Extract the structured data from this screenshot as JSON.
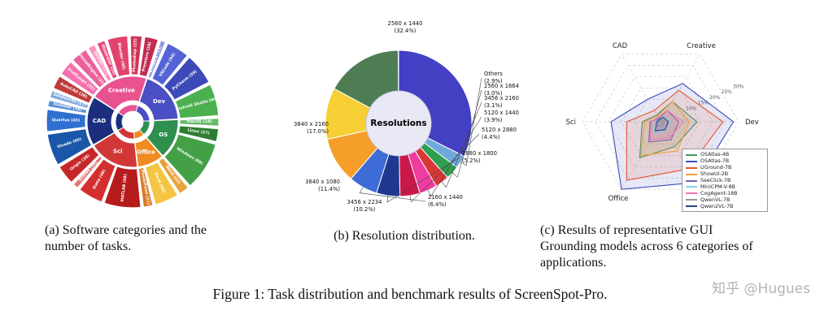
{
  "figure": {
    "caption_a": "(a) Software categories and the number of tasks.",
    "caption_b": "(b) Resolution distribution.",
    "caption_c": "(c) Results of representative GUI Grounding models across 6 categories of applications.",
    "figure_caption": "Figure 1: Task distribution and benchmark results of ScreenSpot-Pro.",
    "watermark": "知乎 @Hugues"
  },
  "chart_data": [
    {
      "type": "pie",
      "variant": "sunburst",
      "title": "Software categories and the number of tasks",
      "start_angle": -57,
      "categories": [
        {
          "name": "Creative",
          "color": "#e8538f",
          "apps": [
            {
              "name": "FruitLoops",
              "count": 31,
              "color": "#f472ae"
            },
            {
              "name": "UnrealEngine",
              "count": 33,
              "color": "#ec5f9b"
            },
            {
              "name": "DaVinci",
              "count": 17,
              "color": "#ff8fc0"
            },
            {
              "name": "Illustrator",
              "count": 19,
              "color": "#e84a7d"
            },
            {
              "name": "Blender",
              "count": 40,
              "color": "#e2426e"
            },
            {
              "name": "Photoshop",
              "count": 25,
              "color": "#cf3457"
            },
            {
              "name": "Premiere",
              "count": 28,
              "color": "#c22b50"
            }
          ]
        },
        {
          "name": "Dev",
          "color": "#4a4fc4",
          "apps": [
            {
              "name": "VMWare",
              "count": 13,
              "color": "#8a93e8"
            },
            {
              "name": "VSCode",
              "count": 44,
              "color": "#5563d6"
            },
            {
              "name": "PyCharm",
              "count": 59,
              "color": "#3d49b8"
            },
            {
              "name": "Android Studio",
              "count": 60,
              "color": "#4caf50"
            }
          ]
        },
        {
          "name": "OS",
          "color": "#2f8f4e",
          "apps": [
            {
              "name": "macOS",
              "count": 18,
              "color": "#66bb6a"
            },
            {
              "name": "Linux",
              "count": 27,
              "color": "#2e7d32"
            },
            {
              "name": "Windows",
              "count": 89,
              "color": "#43a047"
            }
          ]
        },
        {
          "name": "Office",
          "color": "#ef8b1f",
          "apps": [
            {
              "name": "Word",
              "count": 22,
              "color": "#e8a23d"
            },
            {
              "name": "Excel",
              "count": 46,
              "color": "#f4c542"
            },
            {
              "name": "PowerPoint",
              "count": 21,
              "color": "#d97b29"
            }
          ]
        },
        {
          "name": "Sci",
          "color": "#d23737",
          "apps": [
            {
              "name": "MATLAB",
              "count": 68,
              "color": "#b71c1c"
            },
            {
              "name": "Stata",
              "count": 48,
              "color": "#d32f2f"
            },
            {
              "name": "Eviews",
              "count": 14,
              "color": "#e57373"
            },
            {
              "name": "Origin",
              "count": 38,
              "color": "#c62828"
            }
          ]
        },
        {
          "name": "CAD",
          "color": "#1b2f7e",
          "apps": [
            {
              "name": "Vivado",
              "count": 60,
              "color": "#1a57a8"
            },
            {
              "name": "Quartus",
              "count": 43,
              "color": "#2f6fd0"
            },
            {
              "name": "Inventor",
              "count": 16,
              "color": "#5a8fd8"
            },
            {
              "name": "Solidworks",
              "count": 17,
              "color": "#7fa8e0"
            },
            {
              "name": "AutoCAD",
              "count": 28,
              "color": "#c03a3a"
            }
          ]
        }
      ]
    },
    {
      "type": "pie",
      "title": "Resolution distribution",
      "center_label": "Resolutions",
      "slices": [
        {
          "label": "2560 x 1440",
          "pct": 32.4,
          "pct_text": "(32.4%)",
          "color": "#4340c4"
        },
        {
          "label": "Others",
          "pct": 2.9,
          "pct_text": "(2.9%)",
          "color": "#6fa8dc"
        },
        {
          "label": "2560 x 1664",
          "pct": 3.0,
          "pct_text": "(3.0%)",
          "color": "#2e9e4f"
        },
        {
          "label": "3456 x 2160",
          "pct": 3.1,
          "pct_text": "(3.1%)",
          "color": "#d93838"
        },
        {
          "label": "5120 x 1440",
          "pct": 3.9,
          "pct_text": "(3.9%)",
          "color": "#ef3c9f"
        },
        {
          "label": "5120 x 2880",
          "pct": 4.4,
          "pct_text": "(4.4%)",
          "color": "#c9184a"
        },
        {
          "label": "2880 x 1800",
          "pct": 5.2,
          "pct_text": "(5.2%)",
          "color": "#20398f"
        },
        {
          "label": "2160 x 1440",
          "pct": 6.4,
          "pct_text": "(6.4%)",
          "color": "#3e6bd6"
        },
        {
          "label": "3456 x 2234",
          "pct": 10.2,
          "pct_text": "(10.2%)",
          "color": "#f59e2a"
        },
        {
          "label": "3840 x 1080",
          "pct": 11.4,
          "pct_text": "(11.4%)",
          "color": "#f5cf33"
        },
        {
          "label": "3840 x 2160",
          "pct": 17.0,
          "pct_text": "(17.0%)",
          "color": "#4e7d53"
        }
      ]
    },
    {
      "type": "radar",
      "title": "Results of representative GUI Grounding models across 6 categories of applications",
      "axes": [
        "CAD",
        "Creative",
        "Dev",
        "OS",
        "Office",
        "Sci"
      ],
      "ticks": [
        10,
        15,
        20,
        25,
        30
      ],
      "tick_labels": [
        "10%",
        "15%",
        "20%",
        "25%",
        "30%"
      ],
      "legend_position": "lower-right",
      "series": [
        {
          "name": "OSAtlas-4B",
          "color": "#3f9b58",
          "values": [
            3,
            9,
            14,
            11,
            16,
            7
          ]
        },
        {
          "name": "OSAtlas-7B",
          "color": "#3b4cc0",
          "values": [
            10,
            17,
            28,
            27,
            30,
            19
          ]
        },
        {
          "name": "UGround-7B",
          "color": "#e4572e",
          "values": [
            5,
            14,
            24,
            21,
            26,
            13
          ]
        },
        {
          "name": "ShowUI-2B",
          "color": "#f2a03d",
          "values": [
            2.5,
            9,
            11,
            13,
            15,
            6
          ]
        },
        {
          "name": "SeeClick-7B",
          "color": "#7d5fb2",
          "values": [
            1.5,
            5,
            7,
            8,
            9,
            4
          ]
        },
        {
          "name": "MiniCPM-V-8B",
          "color": "#7fd4e8",
          "values": [
            1,
            2.5,
            4,
            4,
            5,
            2
          ]
        },
        {
          "name": "CogAgent-18B",
          "color": "#f078b4",
          "values": [
            2,
            5,
            9,
            7,
            8,
            3.5
          ]
        },
        {
          "name": "QwenVL-7B",
          "color": "#9a9a9a",
          "values": [
            0.5,
            1,
            1.5,
            1.5,
            2,
            1
          ]
        },
        {
          "name": "Qwen2VL-7B",
          "color": "#27408b",
          "values": [
            1,
            2,
            3,
            3.5,
            4,
            1.5
          ]
        }
      ]
    }
  ]
}
